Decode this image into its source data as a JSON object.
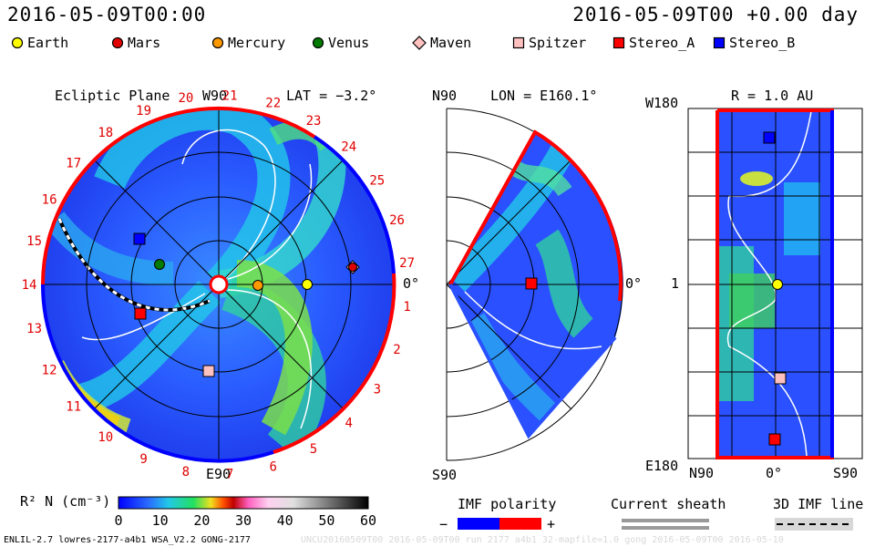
{
  "header": {
    "time_left": "2016-05-09T00:00",
    "time_right": "2016-05-09T00 +0.00 day"
  },
  "legend": [
    {
      "name": "Earth",
      "shape": "circle",
      "color": "#ffff00"
    },
    {
      "name": "Mars",
      "shape": "circle",
      "color": "#e00000"
    },
    {
      "name": "Mercury",
      "shape": "circle",
      "color": "#ff9900"
    },
    {
      "name": "Venus",
      "shape": "circle",
      "color": "#007a00"
    },
    {
      "name": "Maven",
      "shape": "diamond",
      "color": "#ffc0c0"
    },
    {
      "name": "Spitzer",
      "shape": "square",
      "color": "#ffc0c0"
    },
    {
      "name": "Stereo_A",
      "shape": "square",
      "color": "#ff0000"
    },
    {
      "name": "Stereo_B",
      "shape": "square",
      "color": "#0000ff"
    }
  ],
  "ecliptic": {
    "title": "Ecliptic Plane",
    "top_label": "W90",
    "bottom_label": "E90",
    "right_label": "0°",
    "lat_label": "LAT = −3.2°",
    "carrington": [
      "1",
      "2",
      "3",
      "4",
      "5",
      "6",
      "7",
      "8",
      "9",
      "10",
      "11",
      "12",
      "13",
      "14",
      "15",
      "16",
      "17",
      "18",
      "19",
      "20",
      "21",
      "22",
      "23",
      "24",
      "25",
      "26",
      "27"
    ]
  },
  "meridional": {
    "top_label": "N90",
    "bottom_label": "S90",
    "right_label": "0°",
    "lon_label": "LON = E160.1°"
  },
  "latlon": {
    "title": "R = 1.0 AU",
    "top_left": "W180",
    "bottom_left": "E180",
    "left_mid": "1",
    "x_left": "N90",
    "x_mid": "0°",
    "x_right": "S90"
  },
  "colorbar": {
    "title": "R² N (cm⁻³)",
    "ticks": [
      "0",
      "10",
      "20",
      "30",
      "40",
      "50",
      "60"
    ]
  },
  "imf": {
    "polarity_title": "IMF polarity",
    "minus": "−",
    "plus": "+",
    "sheath_title": "Current sheath",
    "line_title": "3D IMF line"
  },
  "footer": {
    "left": "ENLIL-2.7 lowres-2177-a4b1 WSA_V2.2 GONG-2177",
    "right": "UNCU20160509T00 2016-05-09T00 run 2177 a4b1 32-mapfile=1.0 gong 2016-05-09T00 2016-05-10"
  }
}
